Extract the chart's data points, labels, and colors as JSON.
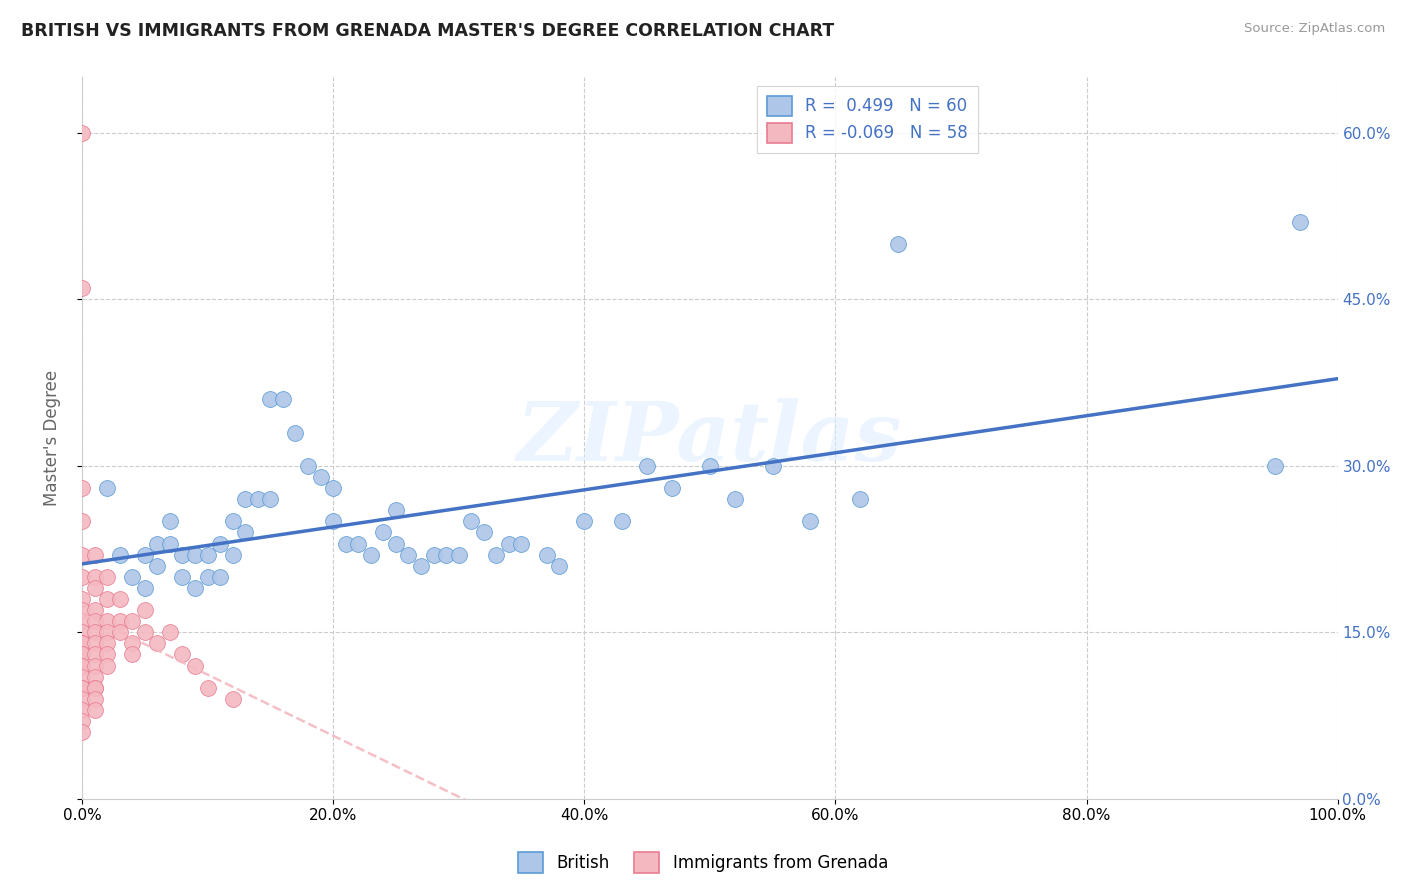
{
  "title": "BRITISH VS IMMIGRANTS FROM GRENADA MASTER'S DEGREE CORRELATION CHART",
  "source": "Source: ZipAtlas.com",
  "ylabel": "Master's Degree",
  "watermark_text": "ZIPatlas",
  "xlim": [
    0.0,
    1.0
  ],
  "ylim": [
    0.0,
    0.65
  ],
  "xticks": [
    0.0,
    0.2,
    0.4,
    0.6,
    0.8,
    1.0
  ],
  "xtick_labels": [
    "0.0%",
    "20.0%",
    "40.0%",
    "60.0%",
    "80.0%",
    "100.0%"
  ],
  "yticks": [
    0.0,
    0.15,
    0.3,
    0.45,
    0.6
  ],
  "ytick_labels": [
    "0.0%",
    "15.0%",
    "30.0%",
    "45.0%",
    "60.0%"
  ],
  "british_color": "#aec6e8",
  "british_edge_color": "#5b9bd5",
  "grenada_color": "#f4b8c1",
  "grenada_edge_color": "#e87d90",
  "british_line_color": "#4472c4",
  "grenada_line_color": "#f4b8c1",
  "R_british": 0.499,
  "N_british": 60,
  "R_grenada": -0.069,
  "N_grenada": 58,
  "british_x": [
    0.02,
    0.03,
    0.04,
    0.05,
    0.05,
    0.06,
    0.06,
    0.07,
    0.07,
    0.08,
    0.08,
    0.09,
    0.09,
    0.1,
    0.1,
    0.11,
    0.11,
    0.12,
    0.12,
    0.13,
    0.13,
    0.14,
    0.15,
    0.15,
    0.16,
    0.17,
    0.18,
    0.19,
    0.2,
    0.2,
    0.21,
    0.22,
    0.23,
    0.24,
    0.25,
    0.25,
    0.26,
    0.27,
    0.28,
    0.29,
    0.3,
    0.31,
    0.32,
    0.33,
    0.34,
    0.35,
    0.37,
    0.38,
    0.4,
    0.43,
    0.45,
    0.47,
    0.5,
    0.52,
    0.55,
    0.58,
    0.62,
    0.65,
    0.95,
    0.97
  ],
  "british_y": [
    0.28,
    0.22,
    0.2,
    0.22,
    0.19,
    0.21,
    0.23,
    0.23,
    0.25,
    0.2,
    0.22,
    0.19,
    0.22,
    0.2,
    0.22,
    0.23,
    0.2,
    0.25,
    0.22,
    0.24,
    0.27,
    0.27,
    0.36,
    0.27,
    0.36,
    0.33,
    0.3,
    0.29,
    0.28,
    0.25,
    0.23,
    0.23,
    0.22,
    0.24,
    0.23,
    0.26,
    0.22,
    0.21,
    0.22,
    0.22,
    0.22,
    0.25,
    0.24,
    0.22,
    0.23,
    0.23,
    0.22,
    0.21,
    0.25,
    0.25,
    0.3,
    0.28,
    0.3,
    0.27,
    0.3,
    0.25,
    0.27,
    0.5,
    0.3,
    0.52
  ],
  "grenada_x": [
    0.0,
    0.0,
    0.0,
    0.0,
    0.0,
    0.0,
    0.0,
    0.0,
    0.0,
    0.0,
    0.0,
    0.0,
    0.0,
    0.0,
    0.0,
    0.0,
    0.0,
    0.0,
    0.0,
    0.0,
    0.0,
    0.0,
    0.0,
    0.01,
    0.01,
    0.01,
    0.01,
    0.01,
    0.01,
    0.01,
    0.01,
    0.01,
    0.01,
    0.01,
    0.01,
    0.01,
    0.01,
    0.02,
    0.02,
    0.02,
    0.02,
    0.02,
    0.02,
    0.02,
    0.03,
    0.03,
    0.03,
    0.04,
    0.04,
    0.04,
    0.05,
    0.05,
    0.06,
    0.07,
    0.08,
    0.09,
    0.1,
    0.12
  ],
  "grenada_y": [
    0.6,
    0.46,
    0.28,
    0.25,
    0.22,
    0.2,
    0.18,
    0.17,
    0.16,
    0.15,
    0.14,
    0.14,
    0.13,
    0.13,
    0.12,
    0.12,
    0.11,
    0.1,
    0.1,
    0.09,
    0.08,
    0.07,
    0.06,
    0.22,
    0.2,
    0.19,
    0.17,
    0.16,
    0.15,
    0.14,
    0.13,
    0.12,
    0.11,
    0.1,
    0.1,
    0.09,
    0.08,
    0.2,
    0.18,
    0.16,
    0.15,
    0.14,
    0.13,
    0.12,
    0.18,
    0.16,
    0.15,
    0.16,
    0.14,
    0.13,
    0.17,
    0.15,
    0.14,
    0.15,
    0.13,
    0.12,
    0.1,
    0.09
  ],
  "grid_color": "#cccccc",
  "background_color": "#ffffff",
  "title_fontsize": 12.5,
  "axis_label_color": "#4472c4",
  "legend_box_color": "#4472c4"
}
